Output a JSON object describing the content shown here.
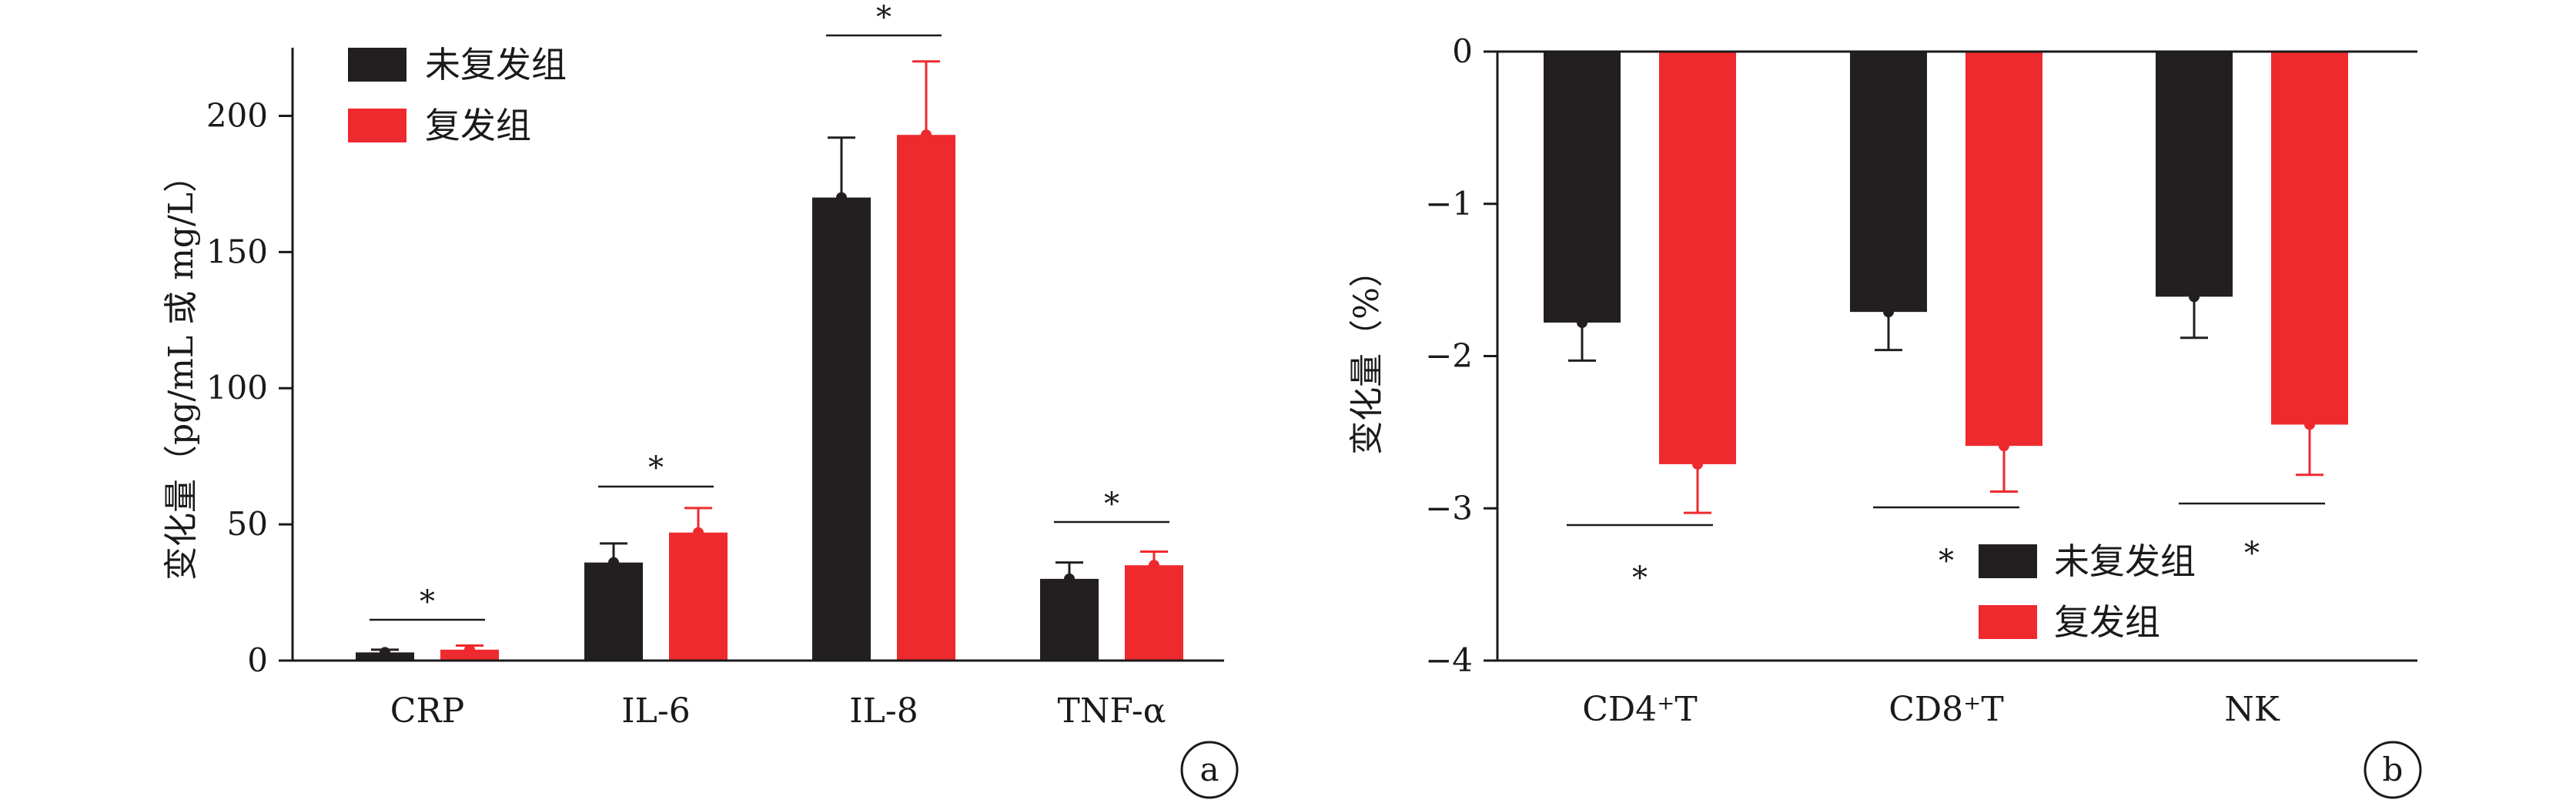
{
  "colors": {
    "no_relapse": "#231f20",
    "relapse": "#ee2a2e",
    "axis": "#1a1a1a"
  },
  "legend": {
    "no_relapse": "未复发组",
    "relapse": "复发组"
  },
  "chart_data": [
    {
      "id": "a",
      "type": "bar",
      "panel_label": "a",
      "ylabel": "变化量（pg/mL 或 mg/L）",
      "ylim": [
        0,
        225
      ],
      "yticks": [
        0,
        50,
        100,
        150,
        200
      ],
      "legend_position": "top-left",
      "categories": [
        "CRP",
        "IL-6",
        "IL-8",
        "TNF-α"
      ],
      "series": [
        {
          "name": "未复发组",
          "values": [
            3,
            36,
            170,
            30
          ],
          "errors": [
            1,
            7,
            22,
            6
          ]
        },
        {
          "name": "复发组",
          "values": [
            4,
            47,
            193,
            35
          ],
          "errors": [
            1.5,
            9,
            27,
            5
          ]
        }
      ],
      "significance": [
        "*",
        "*",
        "*",
        "*"
      ]
    },
    {
      "id": "b",
      "type": "bar",
      "panel_label": "b",
      "ylabel": "变化量（%）",
      "ylim": [
        -4,
        0
      ],
      "yticks": [
        0,
        -1,
        -2,
        -3,
        -4
      ],
      "legend_position": "bottom-right",
      "categories": [
        "CD4⁺T",
        "CD8⁺T",
        "NK"
      ],
      "series": [
        {
          "name": "未复发组",
          "values": [
            -1.78,
            -1.71,
            -1.61
          ],
          "errors": [
            0.25,
            0.25,
            0.27
          ]
        },
        {
          "name": "复发组",
          "values": [
            -2.71,
            -2.59,
            -2.45
          ],
          "errors": [
            0.32,
            0.3,
            0.33
          ]
        }
      ],
      "significance": [
        "*",
        "*",
        "*"
      ]
    }
  ]
}
